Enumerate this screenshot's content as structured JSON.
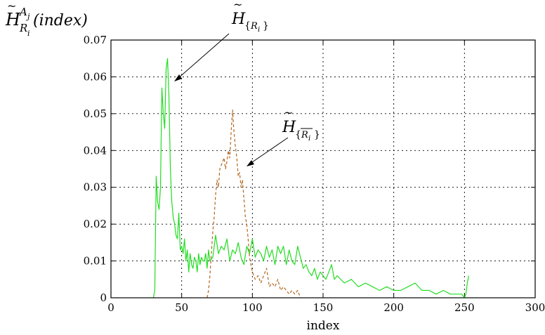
{
  "chart_data": {
    "type": "line",
    "xlabel": "index",
    "ylabel": {
      "base": "H",
      "sup": "A",
      "sup_sub": "j",
      "sub": "R",
      "sub_sub": "i",
      "arg": "(index)"
    },
    "xlim": [
      0,
      300
    ],
    "ylim": [
      0,
      0.07
    ],
    "xticks": [
      "0",
      "50",
      "100",
      "150",
      "200",
      "250",
      "300"
    ],
    "yticks": [
      "0",
      "0.01",
      "0.02",
      "0.03",
      "0.04",
      "0.05",
      "0.06",
      "0.07"
    ],
    "grid": true,
    "colors": {
      "series1": "#22dd22",
      "series2": "#b5651d"
    },
    "annotations": [
      {
        "base": "H",
        "open": "{",
        "sub": "R",
        "sub_sub": "i",
        "close": "}",
        "overline": false
      },
      {
        "base": "H",
        "open": "{",
        "sub": "R",
        "sub_sub": "i",
        "close": "}",
        "overline": true
      }
    ],
    "series": [
      {
        "style": "solid",
        "x": [
          30,
          31,
          32,
          33,
          34,
          35,
          36,
          37,
          38,
          39,
          40,
          41,
          42,
          43,
          44,
          45,
          46,
          47,
          48,
          49,
          50,
          51,
          52,
          53,
          54,
          55,
          56,
          57,
          58,
          59,
          60,
          61,
          62,
          63,
          64,
          65,
          66,
          67,
          68,
          69,
          70,
          72,
          74,
          76,
          78,
          80,
          82,
          84,
          86,
          88,
          90,
          92,
          94,
          96,
          98,
          100,
          102,
          104,
          106,
          108,
          110,
          112,
          114,
          116,
          118,
          120,
          122,
          124,
          126,
          128,
          130,
          132,
          134,
          136,
          138,
          140,
          142,
          144,
          146,
          148,
          150,
          152,
          154,
          156,
          158,
          160,
          165,
          170,
          175,
          180,
          185,
          190,
          195,
          200,
          205,
          210,
          215,
          220,
          225,
          230,
          235,
          240,
          245,
          248,
          250,
          251,
          252,
          253
        ],
        "y": [
          0,
          0.002,
          0.033,
          0.026,
          0.024,
          0.03,
          0.057,
          0.05,
          0.046,
          0.062,
          0.065,
          0.055,
          0.035,
          0.026,
          0.022,
          0.02,
          0.017,
          0.016,
          0.023,
          0.013,
          0.014,
          0.012,
          0.016,
          0.01,
          0.013,
          0.007,
          0.012,
          0.009,
          0.008,
          0.011,
          0.01,
          0.007,
          0.012,
          0.009,
          0.011,
          0.01,
          0.01,
          0.012,
          0.008,
          0.013,
          0.01,
          0.011,
          0.017,
          0.012,
          0.014,
          0.013,
          0.016,
          0.01,
          0.013,
          0.012,
          0.015,
          0.011,
          0.009,
          0.014,
          0.012,
          0.016,
          0.011,
          0.013,
          0.012,
          0.01,
          0.014,
          0.011,
          0.013,
          0.009,
          0.014,
          0.012,
          0.014,
          0.009,
          0.013,
          0.01,
          0.009,
          0.014,
          0.011,
          0.008,
          0.009,
          0.007,
          0.006,
          0.008,
          0.005,
          0.007,
          0.006,
          0.005,
          0.007,
          0.009,
          0.005,
          0.006,
          0.004,
          0.005,
          0.003,
          0.004,
          0.003,
          0.002,
          0.003,
          0.002,
          0.002,
          0.003,
          0.004,
          0.002,
          0.002,
          0.001,
          0.002,
          0.001,
          0.001,
          0.001,
          0,
          0.001,
          0.004,
          0.006
        ]
      },
      {
        "style": "dashed",
        "x": [
          68,
          69,
          70,
          71,
          72,
          73,
          74,
          75,
          76,
          77,
          78,
          79,
          80,
          81,
          82,
          83,
          84,
          85,
          86,
          87,
          88,
          89,
          90,
          91,
          92,
          93,
          94,
          95,
          96,
          97,
          98,
          100,
          102,
          104,
          106,
          108,
          110,
          112,
          114,
          116,
          118,
          120,
          122,
          124,
          126,
          128,
          130,
          132,
          134
        ],
        "y": [
          0,
          0.002,
          0.006,
          0.012,
          0.018,
          0.022,
          0.028,
          0.032,
          0.03,
          0.035,
          0.036,
          0.037,
          0.038,
          0.035,
          0.037,
          0.04,
          0.038,
          0.045,
          0.051,
          0.045,
          0.041,
          0.038,
          0.033,
          0.034,
          0.03,
          0.032,
          0.027,
          0.022,
          0.02,
          0.016,
          0.011,
          0.007,
          0.005,
          0.006,
          0.004,
          0.006,
          0.008,
          0.003,
          0.004,
          0.003,
          0.005,
          0.002,
          0.003,
          0.002,
          0.001,
          0.002,
          0.001,
          0.002,
          0
        ]
      }
    ]
  }
}
